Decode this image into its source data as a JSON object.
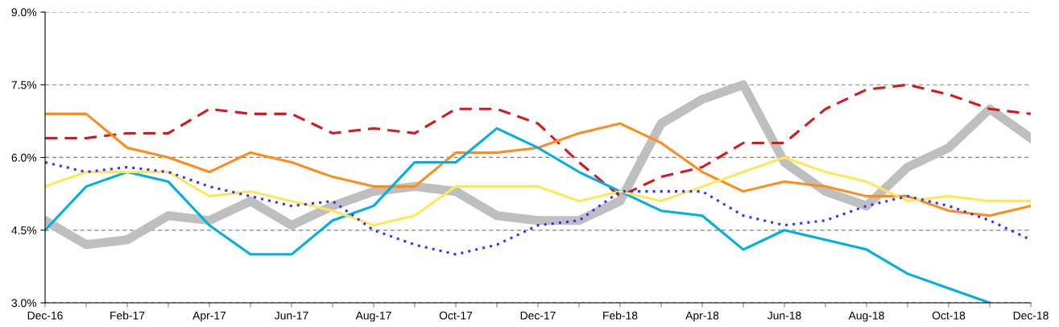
{
  "chart_data": {
    "type": "line",
    "categories": [
      "Dec-16",
      null,
      "Feb-17",
      null,
      "Apr-17",
      null,
      "Jun-17",
      null,
      "Aug-17",
      null,
      "Oct-17",
      null,
      "Dec-17",
      null,
      "Feb-18",
      null,
      "Apr-18",
      null,
      "Jun-18",
      null,
      "Aug-18",
      null,
      "Oct-18",
      null,
      "Dec-18"
    ],
    "series": [
      {
        "color": "#bfbfbf",
        "line_style": "solid",
        "values": [
          4.7,
          4.2,
          4.3,
          4.8,
          4.7,
          5.1,
          4.6,
          5.0,
          5.3,
          5.4,
          5.3,
          4.8,
          4.7,
          4.7,
          5.1,
          6.7,
          7.2,
          7.5,
          5.9,
          5.3,
          5.0,
          5.8,
          6.2,
          7.0,
          6.4
        ]
      },
      {
        "color": "#d7191c",
        "line_style": "dashed",
        "values": [
          6.4,
          6.4,
          6.5,
          6.5,
          7.0,
          6.9,
          6.9,
          6.5,
          6.6,
          6.5,
          7.0,
          7.0,
          6.7,
          5.9,
          5.2,
          5.6,
          5.8,
          6.3,
          6.3,
          7.0,
          7.4,
          7.5,
          7.3,
          7.0,
          6.9
        ]
      },
      {
        "color": "#ff8c1a",
        "line_style": "solid",
        "values": [
          6.9,
          6.9,
          6.2,
          6.0,
          5.7,
          6.1,
          5.9,
          5.6,
          5.4,
          5.4,
          6.1,
          6.1,
          6.2,
          6.5,
          6.7,
          6.3,
          5.7,
          5.3,
          5.5,
          5.4,
          5.2,
          5.2,
          4.9,
          4.8,
          5.0
        ]
      },
      {
        "color": "#00b0e0",
        "line_style": "solid",
        "values": [
          4.5,
          5.4,
          5.7,
          5.5,
          4.6,
          4.0,
          4.0,
          4.7,
          5.0,
          5.9,
          5.9,
          6.6,
          6.2,
          5.7,
          5.3,
          4.9,
          4.8,
          4.1,
          4.5,
          4.3,
          4.1,
          3.6,
          3.3,
          3.0,
          null
        ]
      },
      {
        "color": "#ffe75a",
        "line_style": "solid",
        "values": [
          5.4,
          5.7,
          5.7,
          5.7,
          5.2,
          5.3,
          5.1,
          4.9,
          4.6,
          4.8,
          5.4,
          5.4,
          5.4,
          5.1,
          5.3,
          5.1,
          5.4,
          5.7,
          6.0,
          5.7,
          5.5,
          5.1,
          5.2,
          5.1,
          5.1
        ]
      },
      {
        "color": "#3333ff",
        "line_style": "dotted",
        "values": [
          5.9,
          5.7,
          5.8,
          5.7,
          5.4,
          5.2,
          5.0,
          5.1,
          4.5,
          4.2,
          4.0,
          4.2,
          4.6,
          4.7,
          5.3,
          5.3,
          5.3,
          4.8,
          4.6,
          4.7,
          5.0,
          5.2,
          5.0,
          4.7,
          4.3
        ]
      }
    ],
    "ylim": [
      3.0,
      9.0
    ],
    "yticks": [
      {
        "value": 3.0,
        "label": "3.0%"
      },
      {
        "value": 4.5,
        "label": "4.5%"
      },
      {
        "value": 6.0,
        "label": "6.0%"
      },
      {
        "value": 7.5,
        "label": "7.5%"
      },
      {
        "value": 9.0,
        "label": "9.0%"
      }
    ],
    "grid": "y",
    "marker": "none"
  }
}
